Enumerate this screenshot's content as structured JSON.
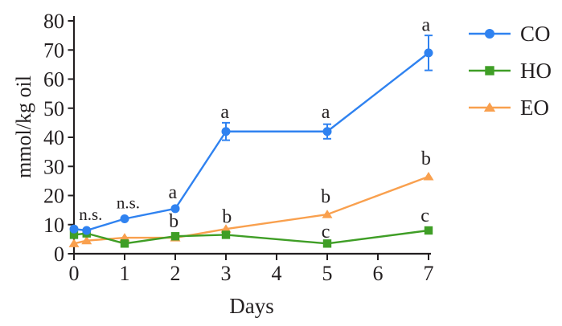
{
  "figure": {
    "background": "#ffffff",
    "text_color": "#231f20",
    "axis_color": "#231f20"
  },
  "chart_data": {
    "type": "line",
    "title": "",
    "xlabel": "Days",
    "ylabel": "mmol/kg oil",
    "xlim": [
      0,
      7
    ],
    "ylim": [
      0,
      80
    ],
    "grid": false,
    "legend_position": "right",
    "x_ticks": [
      "0",
      "1",
      "2",
      "3",
      "4",
      "5",
      "6",
      "7"
    ],
    "y_ticks": [
      "0",
      "10",
      "20",
      "30",
      "40",
      "50",
      "60",
      "70",
      "80"
    ],
    "x": [
      0,
      0.25,
      1,
      2,
      3,
      5,
      7
    ],
    "series": [
      {
        "name": "CO",
        "color": "#2f82f0",
        "marker": "circle",
        "values": [
          8.5,
          8,
          12,
          15.5,
          42,
          42,
          69
        ],
        "errors": [
          0,
          0,
          0,
          0,
          3,
          2.5,
          6
        ]
      },
      {
        "name": "HO",
        "color": "#3f9e26",
        "marker": "square",
        "values": [
          6.5,
          7,
          3.5,
          6,
          6.5,
          3.5,
          8
        ],
        "errors": [
          0,
          0,
          0,
          0,
          0,
          0,
          0
        ]
      },
      {
        "name": "EO",
        "color": "#f9a04e",
        "marker": "triangle",
        "values": [
          3.5,
          4.5,
          5.5,
          5.5,
          8.5,
          13.5,
          26.5
        ],
        "errors": [
          0,
          0,
          0,
          0,
          0,
          0,
          0
        ]
      }
    ],
    "annotations": [
      {
        "text": "n.s.",
        "x": 0.33,
        "y": 13.5
      },
      {
        "text": "n.s.",
        "x": 1.07,
        "y": 17.5
      },
      {
        "text": "a",
        "x": 1.95,
        "y": 21
      },
      {
        "text": "b",
        "x": 1.97,
        "y": 11
      },
      {
        "text": "a",
        "x": 2.98,
        "y": 48.5
      },
      {
        "text": "b",
        "x": 3.02,
        "y": 12.5
      },
      {
        "text": "a",
        "x": 4.97,
        "y": 48.5
      },
      {
        "text": "b",
        "x": 4.97,
        "y": 19.5
      },
      {
        "text": "c",
        "x": 4.97,
        "y": 7.5
      },
      {
        "text": "a",
        "x": 6.95,
        "y": 78.5
      },
      {
        "text": "b",
        "x": 6.95,
        "y": 32.5
      },
      {
        "text": "c",
        "x": 6.93,
        "y": 13
      }
    ]
  }
}
